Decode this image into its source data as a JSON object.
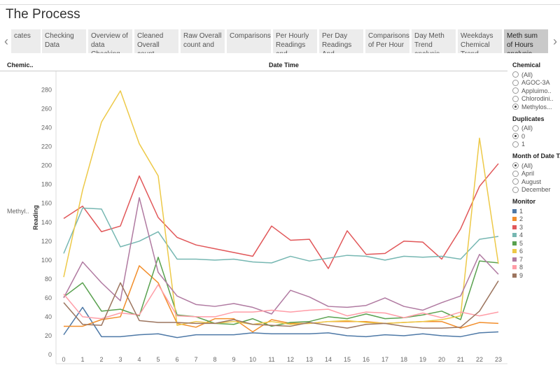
{
  "title": "The Process",
  "tabs": [
    {
      "label": "cates",
      "active": false
    },
    {
      "label": "Checking Data",
      "active": false
    },
    {
      "label": "Overview of data Checking",
      "active": false
    },
    {
      "label": "Cleaned Overall count",
      "active": false
    },
    {
      "label": "Raw Overall count and",
      "active": false
    },
    {
      "label": "Comparisons",
      "active": false
    },
    {
      "label": "Per Hourly Readings and",
      "active": false
    },
    {
      "label": "Per Day Readings And",
      "active": false
    },
    {
      "label": "Comparisons of Per Hour",
      "active": false
    },
    {
      "label": "Day Meth Trend analysis",
      "active": false
    },
    {
      "label": "Weekdays Chemical Trend",
      "active": false
    },
    {
      "label": "Meth sum of Hours analysis",
      "active": true
    }
  ],
  "headers": {
    "chemical": "Chemic..",
    "datetime": "Date Time"
  },
  "row_label": "Methyl..",
  "filters": {
    "chemical": {
      "title": "Chemical",
      "options": [
        "(All)",
        "AGOC-3A",
        "Appluimo..",
        "Chlorodini..",
        "Methylos..."
      ],
      "selected": "Methylos..."
    },
    "duplicates": {
      "title": "Duplicates",
      "options": [
        "(All)",
        "0",
        "1"
      ],
      "selected": "0"
    },
    "month": {
      "title": "Month of Date T..",
      "options": [
        "(All)",
        "April",
        "August",
        "December"
      ],
      "selected": "(All)"
    }
  },
  "monitor_legend": {
    "title": "Monitor",
    "items": [
      {
        "label": "1",
        "color": "#4e79a7"
      },
      {
        "label": "2",
        "color": "#f28e2b"
      },
      {
        "label": "3",
        "color": "#e15759"
      },
      {
        "label": "4",
        "color": "#76b7b2"
      },
      {
        "label": "5",
        "color": "#59a14f"
      },
      {
        "label": "6",
        "color": "#edc948"
      },
      {
        "label": "7",
        "color": "#b07aa1"
      },
      {
        "label": "8",
        "color": "#ff9da7"
      },
      {
        "label": "9",
        "color": "#9c755f"
      }
    ]
  },
  "chart_data": {
    "type": "line",
    "xlabel": "",
    "ylabel": "Reading",
    "x": [
      0,
      1,
      2,
      3,
      4,
      5,
      6,
      7,
      8,
      9,
      10,
      11,
      12,
      13,
      14,
      15,
      16,
      17,
      18,
      19,
      20,
      21,
      22,
      23
    ],
    "ylim": [
      0,
      290
    ],
    "yticks": [
      0,
      20,
      40,
      60,
      80,
      100,
      120,
      140,
      160,
      180,
      200,
      220,
      240,
      260,
      280
    ],
    "grid": false,
    "series": [
      {
        "name": "1",
        "color": "#4e79a7",
        "values": [
          21,
          50,
          19,
          19,
          21,
          22,
          18,
          21,
          21,
          21,
          23,
          22,
          22,
          22,
          23,
          20,
          19,
          21,
          20,
          22,
          20,
          19,
          23,
          24
        ]
      },
      {
        "name": "2",
        "color": "#f28e2b",
        "values": [
          30,
          30,
          37,
          40,
          94,
          76,
          33,
          29,
          38,
          38,
          24,
          37,
          33,
          33,
          35,
          35,
          35,
          33,
          34,
          35,
          35,
          28,
          34,
          33
        ]
      },
      {
        "name": "3",
        "color": "#e15759",
        "values": [
          144,
          157,
          130,
          136,
          189,
          145,
          124,
          116,
          112,
          108,
          104,
          136,
          121,
          122,
          91,
          131,
          106,
          107,
          120,
          119,
          101,
          133,
          178,
          202
        ]
      },
      {
        "name": "4",
        "color": "#76b7b2",
        "values": [
          107,
          155,
          154,
          114,
          120,
          130,
          101,
          101,
          100,
          101,
          98,
          97,
          104,
          99,
          102,
          105,
          104,
          100,
          104,
          103,
          104,
          101,
          122,
          125
        ]
      },
      {
        "name": "5",
        "color": "#59a14f",
        "values": [
          61,
          76,
          46,
          48,
          41,
          103,
          42,
          40,
          33,
          32,
          38,
          30,
          34,
          35,
          40,
          38,
          43,
          38,
          39,
          42,
          46,
          37,
          99,
          97
        ]
      },
      {
        "name": "6",
        "color": "#edc948",
        "values": [
          82,
          174,
          246,
          279,
          223,
          189,
          31,
          35,
          33,
          35,
          32,
          35,
          32,
          33,
          35,
          36,
          34,
          33,
          34,
          35,
          37,
          41,
          229,
          96
        ]
      },
      {
        "name": "7",
        "color": "#b07aa1",
        "values": [
          60,
          98,
          76,
          57,
          166,
          87,
          62,
          53,
          51,
          54,
          50,
          43,
          68,
          61,
          51,
          50,
          52,
          60,
          51,
          47,
          55,
          62,
          106,
          85
        ]
      },
      {
        "name": "8",
        "color": "#ff9da7",
        "values": [
          64,
          40,
          38,
          44,
          42,
          74,
          41,
          40,
          40,
          45,
          45,
          47,
          45,
          47,
          48,
          41,
          45,
          44,
          39,
          44,
          39,
          45,
          41,
          45
        ]
      },
      {
        "name": "9",
        "color": "#9c755f",
        "values": [
          55,
          32,
          31,
          76,
          36,
          34,
          34,
          33,
          33,
          37,
          32,
          31,
          30,
          34,
          31,
          28,
          32,
          33,
          30,
          28,
          28,
          29,
          46,
          78
        ]
      }
    ]
  }
}
